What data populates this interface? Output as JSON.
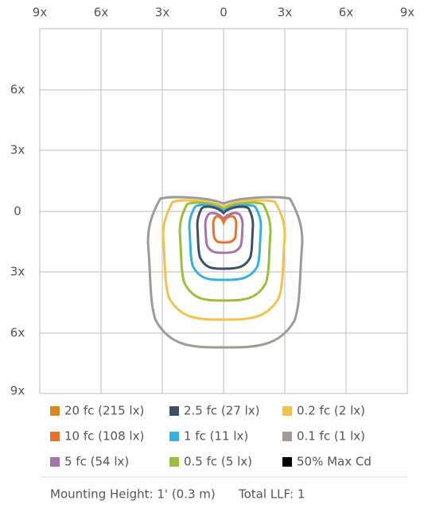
{
  "axis": {
    "top_labels": [
      "9x",
      "6x",
      "3x",
      "0",
      "3x",
      "6x",
      "9x"
    ],
    "left_labels": [
      "6x",
      "3x",
      "0",
      "3x",
      "6x",
      "9x"
    ]
  },
  "legend": [
    {
      "label": "20 fc (215 lx)",
      "color": "#d68a1e"
    },
    {
      "label": "2.5 fc (27 lx)",
      "color": "#3e5068"
    },
    {
      "label": "0.2 fc (2 lx)",
      "color": "#f2c24f"
    },
    {
      "label": "10 fc (108 lx)",
      "color": "#e8712b"
    },
    {
      "label": "1 fc (11 lx)",
      "color": "#36b0e1"
    },
    {
      "label": "0.1 fc (1 lx)",
      "color": "#9e9a95"
    },
    {
      "label": "5 fc (54 lx)",
      "color": "#a574a9"
    },
    {
      "label": "0.5 fc (5 lx)",
      "color": "#9cbf3b"
    },
    {
      "label": "50% Max Cd",
      "color": "#000000"
    }
  ],
  "footer": {
    "mounting": "Mounting Height: 1' (0.3 m)",
    "llf": "Total LLF: 1"
  }
}
